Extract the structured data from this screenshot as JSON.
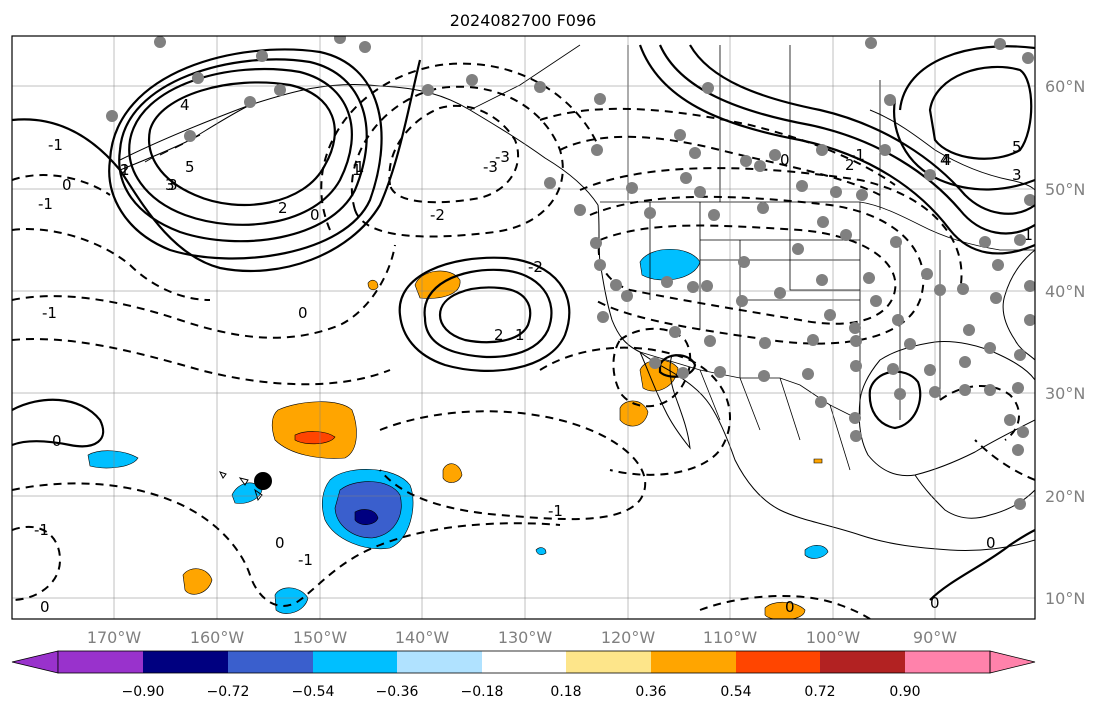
{
  "title": "2024082700 F096",
  "lon_labels": [
    "170°W",
    "160°W",
    "150°W",
    "140°W",
    "130°W",
    "120°W",
    "110°W",
    "100°W",
    "90°W"
  ],
  "lat_labels": [
    "60°N",
    "50°N",
    "40°N",
    "30°N",
    "20°N",
    "10°N"
  ],
  "colorbar": {
    "ticks": [
      "−0.90",
      "−0.72",
      "−0.54",
      "−0.36",
      "−0.18",
      "0.18",
      "0.36",
      "0.54",
      "0.72",
      "0.90"
    ],
    "colors": [
      "#9932cc",
      "#000080",
      "#3a5fcd",
      "#00bfff",
      "#b0e2ff",
      "#ffffff",
      "#fde58a",
      "#ffa500",
      "#ff4500",
      "#b22222",
      "#ff82ab"
    ]
  },
  "contour_labels": [
    "-1",
    "0",
    "-1",
    "1",
    "2",
    "3",
    "4",
    "5",
    "-2",
    "0",
    "1",
    "0",
    "-3",
    "-2",
    "-1",
    "2",
    "-1",
    "0",
    "2",
    "0",
    "3",
    "-1",
    "1",
    "4",
    "5",
    "3",
    "0",
    "-1",
    "0",
    "0",
    "-1",
    "-1",
    "0",
    "0",
    "-3",
    "1",
    "2",
    "4"
  ],
  "station_marker": "black-dot-station"
}
